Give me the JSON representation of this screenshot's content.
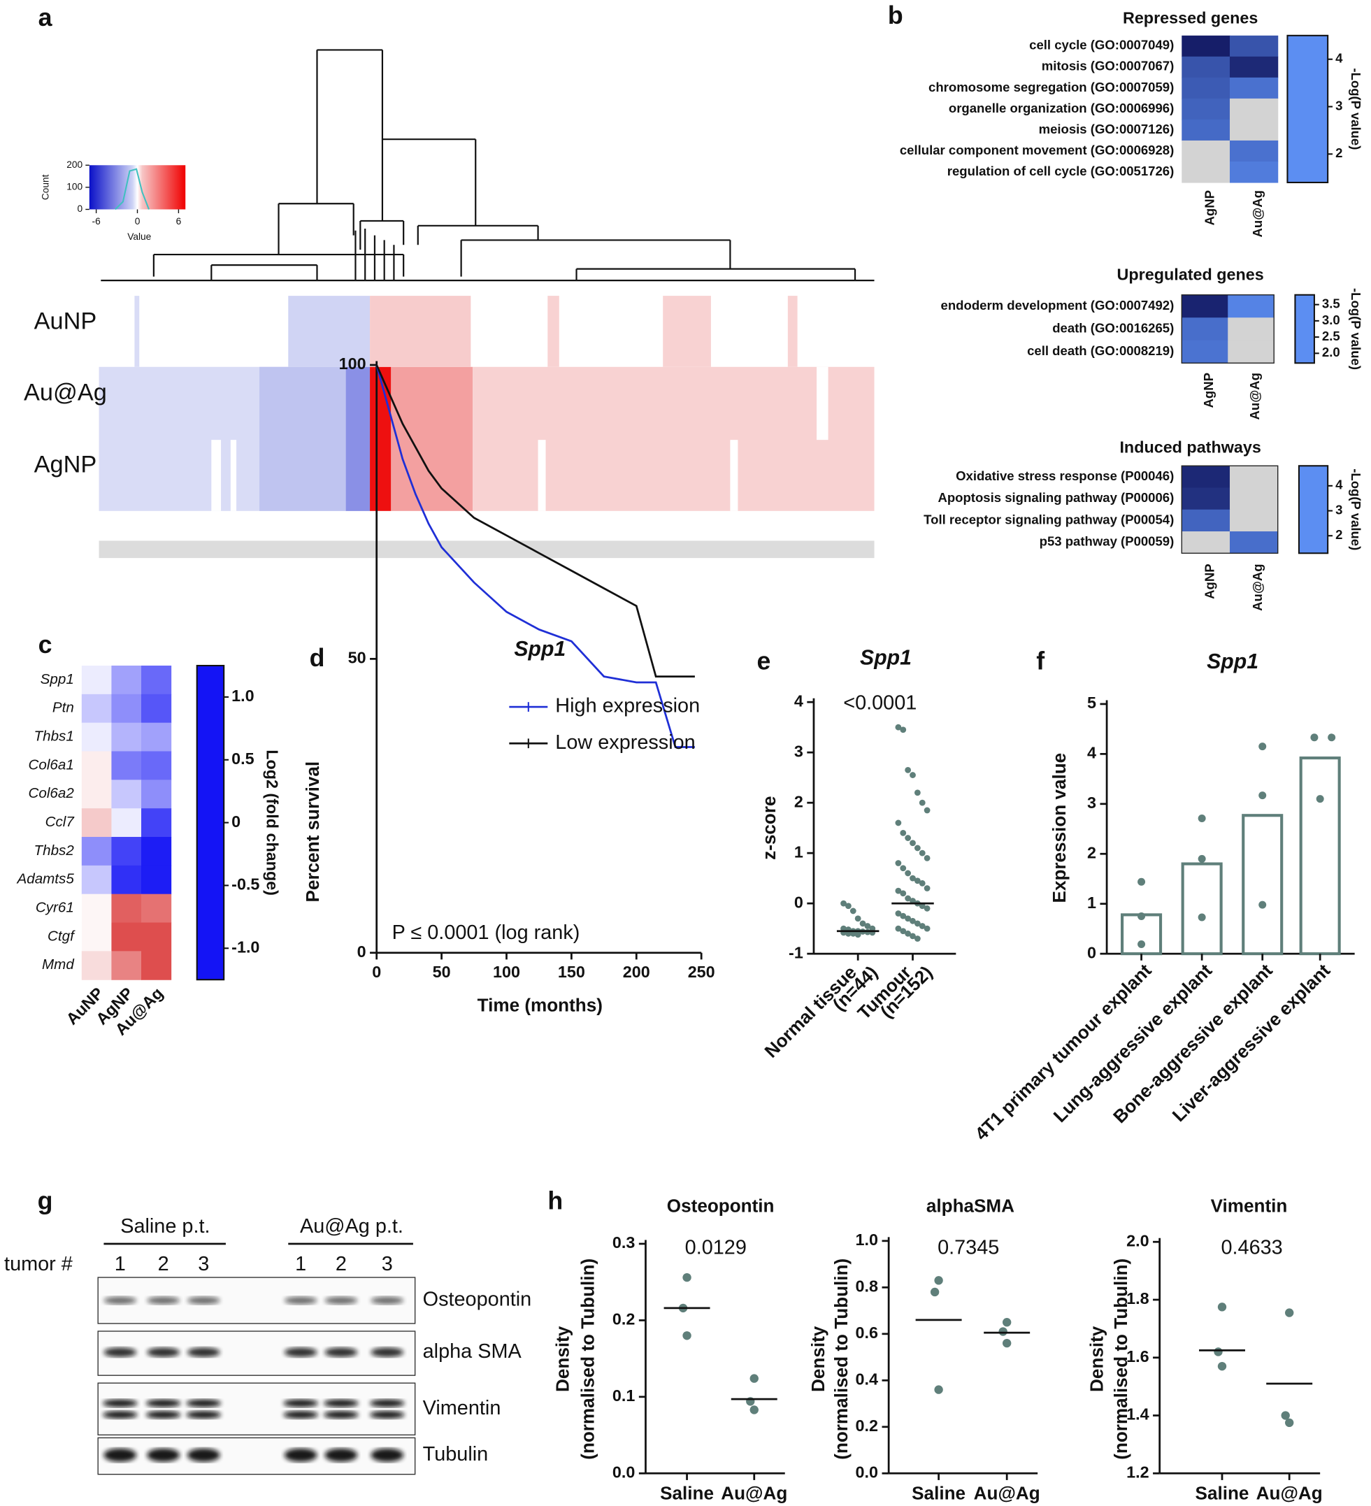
{
  "chart_data": [
    {
      "type": "heatmap_overview",
      "panel": "a",
      "rows": [
        "AuNP",
        "Au@Ag",
        "AgNP"
      ],
      "key": {
        "xlabel": "Value",
        "ylabel": "Count",
        "xlim": [
          -7,
          7
        ],
        "xticks": [
          -6,
          0,
          6
        ],
        "ylim": [
          0,
          200
        ],
        "yticks": [
          0,
          100,
          200
        ]
      }
    },
    {
      "type": "heatmap",
      "panel": "b",
      "title": "Repressed genes",
      "scale": "sequential",
      "null_color": "#d3d3d3",
      "rows": [
        "cell cycle (GO:0007049)",
        "mitosis (GO:0007067)",
        "chromosome segregation (GO:0007059)",
        "organelle organization (GO:0006996)",
        "meiosis (GO:0007126)",
        "cellular component movement (GO:0006928)",
        "regulation of cell cycle (GO:0051726)"
      ],
      "columns": [
        "AgNP",
        "Au@Ag"
      ],
      "values": [
        [
          4.5,
          3.0
        ],
        [
          3.0,
          4.2
        ],
        [
          2.8,
          2.2
        ],
        [
          2.6,
          null
        ],
        [
          2.4,
          null
        ],
        [
          null,
          2.2
        ],
        [
          null,
          1.9
        ]
      ],
      "clim": [
        1.4,
        4.5
      ],
      "cticks": [
        2,
        3,
        4
      ],
      "clabel": "-Log(P value)"
    },
    {
      "type": "heatmap",
      "title": "Upregulated genes",
      "scale": "sequential",
      "null_color": "#d3d3d3",
      "rows": [
        "endoderm development (GO:0007492)",
        "death (GO:0016265)",
        "cell death (GO:0008219)"
      ],
      "columns": [
        "AgNP",
        "Au@Ag"
      ],
      "values": [
        [
          3.7,
          1.9
        ],
        [
          2.3,
          null
        ],
        [
          2.2,
          null
        ]
      ],
      "clim": [
        1.7,
        3.8
      ],
      "cticks": [
        {
          "value": 2,
          "label": "2.0"
        },
        2.5,
        {
          "value": 3,
          "label": "3.0"
        },
        3.5
      ],
      "clabel": "-Log(P value)"
    },
    {
      "type": "heatmap",
      "title": "Induced pathways",
      "scale": "sequential",
      "null_color": "#d3d3d3",
      "rows": [
        "Oxidative stress response (P00046)",
        "Apoptosis signaling pathway (P00006)",
        "Toll receptor signaling pathway (P00054)",
        "p53 pathway (P00059)"
      ],
      "columns": [
        "AgNP",
        "Au@Ag"
      ],
      "values": [
        [
          4.5,
          null
        ],
        [
          4.2,
          null
        ],
        [
          2.6,
          null
        ],
        [
          null,
          2.3
        ]
      ],
      "clim": [
        1.3,
        4.8
      ],
      "cticks": [
        2,
        3,
        4
      ],
      "clabel": "-Log(P value)"
    },
    {
      "type": "heatmap",
      "panel": "c",
      "scale": "diverging",
      "null_color": "#d3d3d3",
      "rows": [
        "Spp1",
        "Ptn",
        "Thbs1",
        "Col6a1",
        "Col6a2",
        "Ccl7",
        "Thbs2",
        "Adamts5",
        "Cyr61",
        "Ctgf",
        "Mmd"
      ],
      "columns": [
        "AuNP",
        "AgNP",
        "Au@Ag"
      ],
      "values": [
        [
          -0.1,
          -0.5,
          -0.8
        ],
        [
          -0.3,
          -0.6,
          -0.9
        ],
        [
          -0.1,
          -0.4,
          -0.5
        ],
        [
          0.1,
          -0.7,
          -0.8
        ],
        [
          0.1,
          -0.3,
          -0.6
        ],
        [
          0.3,
          -0.1,
          -1.0
        ],
        [
          -0.6,
          -1.0,
          -1.2
        ],
        [
          -0.3,
          -1.1,
          -1.2
        ],
        [
          0.05,
          0.9,
          0.8
        ],
        [
          0.05,
          1.0,
          1.0
        ],
        [
          0.2,
          0.7,
          1.0
        ]
      ],
      "clim": [
        -1.25,
        1.25
      ],
      "cticks": [
        {
          "value": -1,
          "label": "-1.0"
        },
        -0.5,
        0,
        0.5,
        {
          "value": 1,
          "label": "1.0"
        }
      ],
      "clabel": "Log2 (fold change)"
    },
    {
      "type": "line",
      "panel": "d",
      "title": "Spp1",
      "xlabel": "Time (months)",
      "ylabel": "Percent survival",
      "annotation": "P ≤ 0.0001 (log rank)",
      "x": [
        0,
        10,
        20,
        30,
        40,
        50,
        75,
        100,
        125,
        150,
        175,
        200,
        215,
        230,
        245
      ],
      "series": [
        {
          "name": "High expression",
          "color": "#1f2fd6",
          "values": [
            100,
            92,
            84,
            78,
            73,
            69,
            63,
            58,
            55,
            53,
            47,
            46,
            46,
            35,
            35
          ]
        },
        {
          "name": "Low expression",
          "color": "#111111",
          "values": [
            100,
            95,
            90,
            86,
            82,
            79,
            74,
            71,
            68,
            65,
            62,
            59,
            47,
            47,
            47
          ]
        }
      ],
      "xlim": [
        0,
        250
      ],
      "xticks": [
        0,
        50,
        100,
        150,
        200,
        250
      ],
      "ylim": [
        0,
        100
      ],
      "yticks": [
        0,
        50,
        100
      ]
    },
    {
      "type": "dot",
      "panel": "e",
      "title": "Spp1",
      "ylabel": "z-score",
      "annotation": "<0.0001",
      "color": "#5f7f7a",
      "categories": [
        [
          "Normal tissue",
          "(n=44)"
        ],
        [
          "Tumour",
          "(n=152)"
        ]
      ],
      "points": [
        [
          0.0,
          -0.05,
          -0.15,
          -0.3,
          -0.4,
          -0.45,
          -0.5,
          -0.5,
          -0.52,
          -0.55,
          -0.55,
          -0.56,
          -0.57,
          -0.58,
          -0.58,
          -0.6,
          -0.6,
          -0.62
        ],
        [
          3.5,
          3.45,
          2.65,
          2.55,
          2.2,
          2.0,
          1.85,
          1.6,
          1.4,
          1.3,
          1.2,
          1.1,
          1.0,
          0.9,
          0.8,
          0.7,
          0.6,
          0.5,
          0.45,
          0.4,
          0.3,
          0.25,
          0.2,
          0.1,
          0.05,
          0,
          -0.05,
          -0.1,
          -0.2,
          -0.25,
          -0.3,
          -0.35,
          -0.4,
          -0.45,
          -0.5,
          -0.5,
          -0.55,
          -0.6,
          -0.65,
          -0.7
        ]
      ],
      "means": [
        -0.55,
        0
      ],
      "ylim": [
        -1,
        4
      ],
      "yticks": [
        -1,
        0,
        1,
        2,
        3,
        4
      ]
    },
    {
      "type": "bar",
      "panel": "f",
      "title": "Spp1",
      "ylabel": "Expression value",
      "color": "#5f7f7a",
      "categories": [
        "4T1 primary tumour explant",
        "Lung-aggressive explant",
        "Bone-aggressive explant",
        "Liver-aggressive explant"
      ],
      "values": [
        0.78,
        1.8,
        2.77,
        3.92
      ],
      "points": [
        [
          1.44,
          0.75,
          0.19
        ],
        [
          2.71,
          1.9,
          0.73
        ],
        [
          4.15,
          3.17,
          0.98
        ],
        [
          4.33,
          4.33,
          3.1
        ]
      ],
      "ylim": [
        0,
        5
      ],
      "yticks": [
        0,
        1,
        2,
        3,
        4,
        5
      ]
    },
    {
      "type": "blot",
      "panel": "g",
      "groups": [
        "Saline p.t.",
        "Au@Ag p.t."
      ],
      "row_title": "tumor #",
      "lanes": [
        1,
        2,
        3,
        1,
        2,
        3
      ],
      "bands": [
        "Osteopontin",
        "alpha SMA",
        "Vimentin",
        "Tubulin"
      ]
    },
    {
      "type": "dot",
      "panel": "h",
      "title": "Osteopontin",
      "annotation": "0.0129",
      "ylabel": [
        "Density",
        "(normalised to Tubulin)"
      ],
      "color": "#5f7f7a",
      "categories": [
        "Saline",
        "Au@Ag"
      ],
      "points": [
        [
          0.256,
          0.216,
          0.18
        ],
        [
          0.124,
          0.094,
          0.083
        ]
      ],
      "means": [
        0.216,
        0.097
      ],
      "ylim": [
        0,
        0.3
      ],
      "yticks": [
        {
          "value": 0,
          "label": "0.0"
        },
        0.1,
        0.2,
        0.3
      ]
    },
    {
      "type": "dot",
      "title": "alphaSMA",
      "annotation": "0.7345",
      "ylabel": [
        "Density",
        "(normalised to Tubulin)"
      ],
      "color": "#5f7f7a",
      "categories": [
        "Saline",
        "Au@Ag"
      ],
      "points": [
        [
          0.83,
          0.78,
          0.36
        ],
        [
          0.65,
          0.61,
          0.56
        ]
      ],
      "means": [
        0.66,
        0.605
      ],
      "ylim": [
        0,
        1
      ],
      "yticks": [
        {
          "value": 0,
          "label": "0.0"
        },
        0.2,
        0.4,
        0.6,
        0.8,
        {
          "value": 1,
          "label": "1.0"
        }
      ]
    },
    {
      "type": "dot",
      "title": "Vimentin",
      "annotation": "0.4633",
      "ylabel": [
        "Density",
        "(normalised to Tubulin)"
      ],
      "color": "#5f7f7a",
      "categories": [
        "Saline",
        "Au@Ag"
      ],
      "points": [
        [
          1.775,
          1.62,
          1.57
        ],
        [
          1.755,
          1.4,
          1.375
        ]
      ],
      "means": [
        1.625,
        1.51
      ],
      "ylim": [
        1.2,
        2
      ],
      "yticks": [
        1.2,
        1.4,
        1.6,
        1.8,
        {
          "value": 2,
          "label": "2.0"
        }
      ]
    }
  ]
}
